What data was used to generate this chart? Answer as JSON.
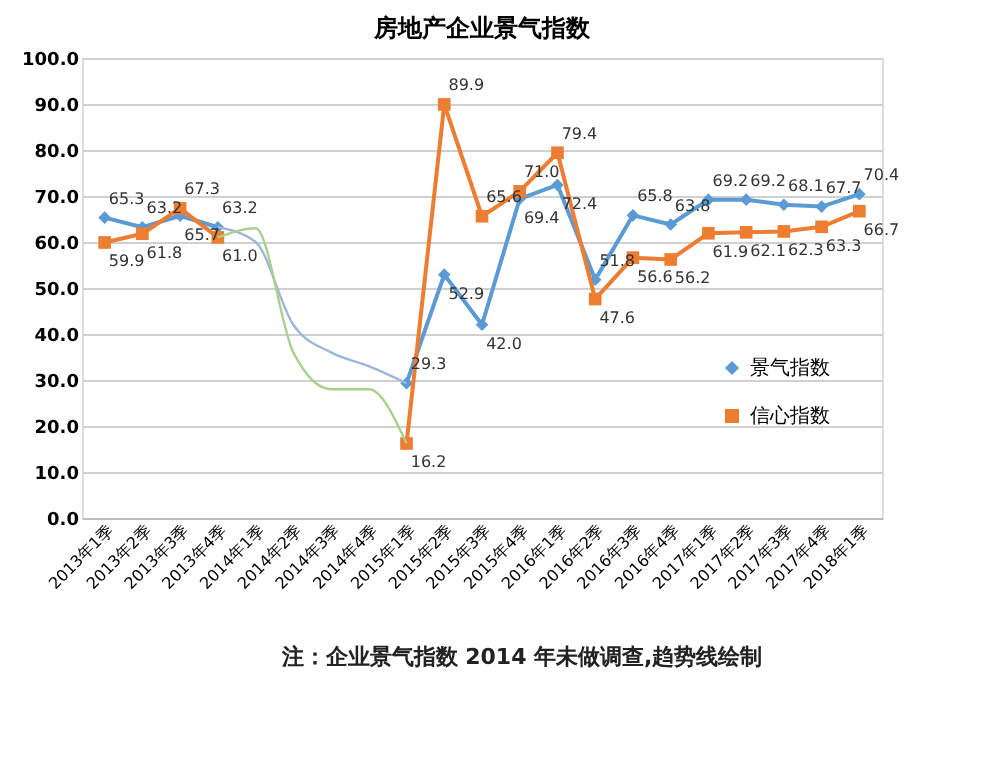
{
  "chart_data": {
    "type": "line",
    "title": "房地产企业景气指数",
    "categories": [
      "2013年1季",
      "2013年2季",
      "2013年3季",
      "2013年4季",
      "2014年1季",
      "2014年2季",
      "2014年3季",
      "2014年4季",
      "2015年1季",
      "2015年2季",
      "2015年3季",
      "2015年4季",
      "2016年1季",
      "2016年2季",
      "2016年3季",
      "2016年4季",
      "2017年1季",
      "2017年2季",
      "2017年3季",
      "2017年4季",
      "2018年1季"
    ],
    "series": [
      {
        "name": "景气指数",
        "color": "#5b9bd5",
        "marker": "diamond",
        "values": [
          65.3,
          63.2,
          65.7,
          63.2,
          null,
          null,
          null,
          null,
          29.3,
          52.9,
          42.0,
          69.4,
          72.4,
          51.8,
          65.8,
          63.8,
          69.2,
          69.2,
          68.1,
          67.7,
          70.4
        ],
        "value_labels": [
          "65.3",
          "63.2",
          "65.7",
          "63.2",
          null,
          null,
          null,
          null,
          "29.3",
          "52.9",
          "42.0",
          "69.4",
          "72.4",
          "51.8",
          "65.8",
          "63.8",
          "69.2",
          "69.2",
          "68.1",
          "67.7",
          "70.4"
        ]
      },
      {
        "name": "信心指数",
        "color": "#ed7d31",
        "marker": "square",
        "values": [
          59.9,
          61.8,
          67.3,
          61.0,
          null,
          null,
          null,
          null,
          16.2,
          89.9,
          65.6,
          71.0,
          79.4,
          47.6,
          56.6,
          56.2,
          61.9,
          62.1,
          62.3,
          63.3,
          66.7
        ],
        "value_labels": [
          "59.9",
          "61.8",
          "67.3",
          "61.0",
          null,
          null,
          null,
          null,
          "16.2",
          "89.9",
          "65.6",
          "71.0",
          "79.4",
          "47.6",
          "56.6",
          "56.2",
          "61.9",
          "62.1",
          "62.3",
          "63.3",
          "66.7"
        ]
      },
      {
        "color": "#9db7d9",
        "marker": "none",
        "values": [
          null,
          null,
          null,
          63.2,
          60,
          42,
          36,
          33,
          29.3,
          null,
          null,
          null,
          null,
          null,
          null,
          null,
          null,
          null,
          null,
          null,
          null
        ]
      },
      {
        "color": "#a9d18e",
        "marker": "none",
        "values": [
          null,
          null,
          null,
          61.0,
          63,
          36,
          28,
          28,
          16.2,
          null,
          null,
          null,
          null,
          null,
          null,
          null,
          null,
          null,
          null,
          null,
          null
        ]
      }
    ],
    "ylim": [
      0,
      100
    ],
    "yticks": [
      {
        "value": 0,
        "label": "0.0"
      },
      {
        "value": 10,
        "label": "10.0"
      },
      {
        "value": 20,
        "label": "20.0"
      },
      {
        "value": 30,
        "label": "30.0"
      },
      {
        "value": 40,
        "label": "40.0"
      },
      {
        "value": 50,
        "label": "50.0"
      },
      {
        "value": 60,
        "label": "60.0"
      },
      {
        "value": 70,
        "label": "70.0"
      },
      {
        "value": 80,
        "label": "80.0"
      },
      {
        "value": 90,
        "label": "90.0"
      },
      {
        "value": 100,
        "label": "100.0"
      }
    ],
    "grid": "y",
    "legend": "right",
    "annotations": [
      "注：企业景气指数 2014 年未做调查,趋势线绘制"
    ]
  }
}
